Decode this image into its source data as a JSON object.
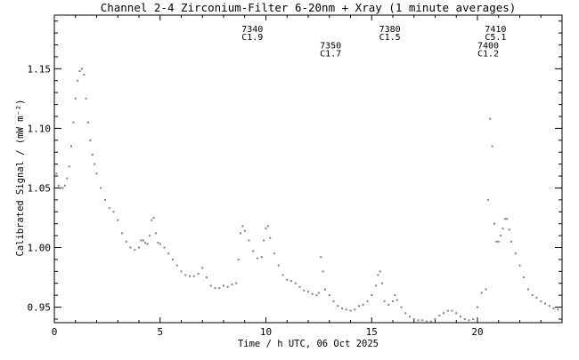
{
  "chart_data": {
    "type": "scatter",
    "title": "Channel 2-4   Zirconium-Filter   6-20nm + Xray   (1 minute averages)",
    "xlabel": "Time / h UTC, 06 Oct 2025",
    "ylabel": "Calibrated Signal / (mW m⁻²)",
    "xlim": [
      0,
      24
    ],
    "ylim": [
      0.937,
      1.195
    ],
    "x_ticks": [
      0,
      5,
      10,
      15,
      20
    ],
    "x_tick_labels": [
      "0",
      "5",
      "10",
      "15",
      "20"
    ],
    "y_ticks": [
      0.95,
      1.0,
      1.05,
      1.1,
      1.15
    ],
    "y_tick_labels": [
      "0.95",
      "1.00",
      "1.05",
      "1.10",
      "1.15"
    ],
    "grid": false,
    "legend": "none",
    "marker_color": "#808080",
    "annotations": [
      {
        "id": "7340",
        "class": "C1.9",
        "x": 8.85,
        "y": 1.181
      },
      {
        "id": "7350",
        "class": "C1.7",
        "x": 12.55,
        "y": 1.167
      },
      {
        "id": "7380",
        "class": "C1.5",
        "x": 15.35,
        "y": 1.181
      },
      {
        "id": "7410",
        "class": "C5.1",
        "x": 20.35,
        "y": 1.181
      },
      {
        "id": "7400",
        "class": "C1.2",
        "x": 20.0,
        "y": 1.167
      }
    ],
    "series": [
      {
        "values": [
          [
            0.0,
            1.075
          ],
          [
            0.1,
            1.062
          ],
          [
            0.2,
            1.052
          ],
          [
            0.3,
            1.05
          ],
          [
            0.4,
            1.05
          ],
          [
            0.5,
            1.052
          ],
          [
            0.6,
            1.058
          ],
          [
            0.7,
            1.068
          ],
          [
            0.8,
            1.085
          ],
          [
            0.9,
            1.105
          ],
          [
            1.0,
            1.125
          ],
          [
            1.1,
            1.14
          ],
          [
            1.2,
            1.148
          ],
          [
            1.3,
            1.15
          ],
          [
            1.4,
            1.145
          ],
          [
            1.5,
            1.125
          ],
          [
            1.6,
            1.105
          ],
          [
            1.7,
            1.09
          ],
          [
            1.8,
            1.078
          ],
          [
            1.9,
            1.07
          ],
          [
            2.0,
            1.062
          ],
          [
            2.2,
            1.05
          ],
          [
            2.4,
            1.04
          ],
          [
            2.6,
            1.033
          ],
          [
            2.8,
            1.03
          ],
          [
            3.0,
            1.023
          ],
          [
            3.2,
            1.012
          ],
          [
            3.4,
            1.005
          ],
          [
            3.6,
            1.0
          ],
          [
            3.8,
            0.998
          ],
          [
            4.0,
            1.0
          ],
          [
            4.1,
            1.006
          ],
          [
            4.2,
            1.006
          ],
          [
            4.3,
            1.004
          ],
          [
            4.4,
            1.003
          ],
          [
            4.5,
            1.01
          ],
          [
            4.6,
            1.023
          ],
          [
            4.7,
            1.025
          ],
          [
            4.8,
            1.012
          ],
          [
            4.9,
            1.004
          ],
          [
            5.0,
            1.003
          ],
          [
            5.2,
            1.0
          ],
          [
            5.4,
            0.995
          ],
          [
            5.6,
            0.99
          ],
          [
            5.8,
            0.985
          ],
          [
            6.0,
            0.98
          ],
          [
            6.2,
            0.977
          ],
          [
            6.4,
            0.976
          ],
          [
            6.6,
            0.976
          ],
          [
            6.8,
            0.978
          ],
          [
            7.0,
            0.983
          ],
          [
            7.2,
            0.975
          ],
          [
            7.4,
            0.968
          ],
          [
            7.6,
            0.966
          ],
          [
            7.8,
            0.966
          ],
          [
            8.0,
            0.968
          ],
          [
            8.2,
            0.967
          ],
          [
            8.4,
            0.969
          ],
          [
            8.6,
            0.97
          ],
          [
            8.7,
            0.99
          ],
          [
            8.8,
            1.012
          ],
          [
            8.9,
            1.018
          ],
          [
            9.0,
            1.014
          ],
          [
            9.2,
            1.006
          ],
          [
            9.4,
            0.997
          ],
          [
            9.6,
            0.991
          ],
          [
            9.8,
            0.992
          ],
          [
            9.9,
            1.006
          ],
          [
            10.0,
            1.016
          ],
          [
            10.1,
            1.018
          ],
          [
            10.2,
            1.008
          ],
          [
            10.4,
            0.995
          ],
          [
            10.6,
            0.985
          ],
          [
            10.8,
            0.977
          ],
          [
            11.0,
            0.973
          ],
          [
            11.2,
            0.972
          ],
          [
            11.4,
            0.97
          ],
          [
            11.6,
            0.967
          ],
          [
            11.8,
            0.964
          ],
          [
            12.0,
            0.963
          ],
          [
            12.2,
            0.961
          ],
          [
            12.4,
            0.96
          ],
          [
            12.5,
            0.962
          ],
          [
            12.6,
            0.992
          ],
          [
            12.7,
            0.98
          ],
          [
            12.8,
            0.965
          ],
          [
            13.0,
            0.96
          ],
          [
            13.2,
            0.955
          ],
          [
            13.4,
            0.951
          ],
          [
            13.6,
            0.949
          ],
          [
            13.8,
            0.948
          ],
          [
            14.0,
            0.947
          ],
          [
            14.2,
            0.948
          ],
          [
            14.4,
            0.951
          ],
          [
            14.6,
            0.952
          ],
          [
            14.8,
            0.955
          ],
          [
            15.0,
            0.96
          ],
          [
            15.2,
            0.968
          ],
          [
            15.3,
            0.977
          ],
          [
            15.4,
            0.98
          ],
          [
            15.5,
            0.97
          ],
          [
            15.6,
            0.955
          ],
          [
            15.8,
            0.952
          ],
          [
            16.0,
            0.955
          ],
          [
            16.1,
            0.96
          ],
          [
            16.2,
            0.956
          ],
          [
            16.4,
            0.95
          ],
          [
            16.6,
            0.945
          ],
          [
            16.8,
            0.942
          ],
          [
            17.0,
            0.94
          ],
          [
            17.2,
            0.939
          ],
          [
            17.4,
            0.939
          ],
          [
            17.6,
            0.938
          ],
          [
            17.8,
            0.938
          ],
          [
            18.0,
            0.94
          ],
          [
            18.2,
            0.943
          ],
          [
            18.4,
            0.945
          ],
          [
            18.6,
            0.947
          ],
          [
            18.8,
            0.947
          ],
          [
            19.0,
            0.945
          ],
          [
            19.2,
            0.942
          ],
          [
            19.4,
            0.94
          ],
          [
            19.6,
            0.939
          ],
          [
            19.8,
            0.94
          ],
          [
            20.0,
            0.95
          ],
          [
            20.2,
            0.962
          ],
          [
            20.4,
            0.965
          ],
          [
            20.5,
            1.04
          ],
          [
            20.6,
            1.108
          ],
          [
            20.7,
            1.085
          ],
          [
            20.8,
            1.02
          ],
          [
            20.9,
            1.005
          ],
          [
            21.0,
            1.005
          ],
          [
            21.1,
            1.01
          ],
          [
            21.2,
            1.016
          ],
          [
            21.3,
            1.024
          ],
          [
            21.4,
            1.024
          ],
          [
            21.5,
            1.015
          ],
          [
            21.6,
            1.005
          ],
          [
            21.8,
            0.995
          ],
          [
            22.0,
            0.985
          ],
          [
            22.2,
            0.975
          ],
          [
            22.4,
            0.965
          ],
          [
            22.6,
            0.96
          ],
          [
            22.8,
            0.958
          ],
          [
            23.0,
            0.955
          ],
          [
            23.2,
            0.953
          ],
          [
            23.4,
            0.951
          ],
          [
            23.6,
            0.949
          ],
          [
            23.8,
            0.948
          ],
          [
            24.0,
            0.951
          ]
        ]
      }
    ]
  }
}
